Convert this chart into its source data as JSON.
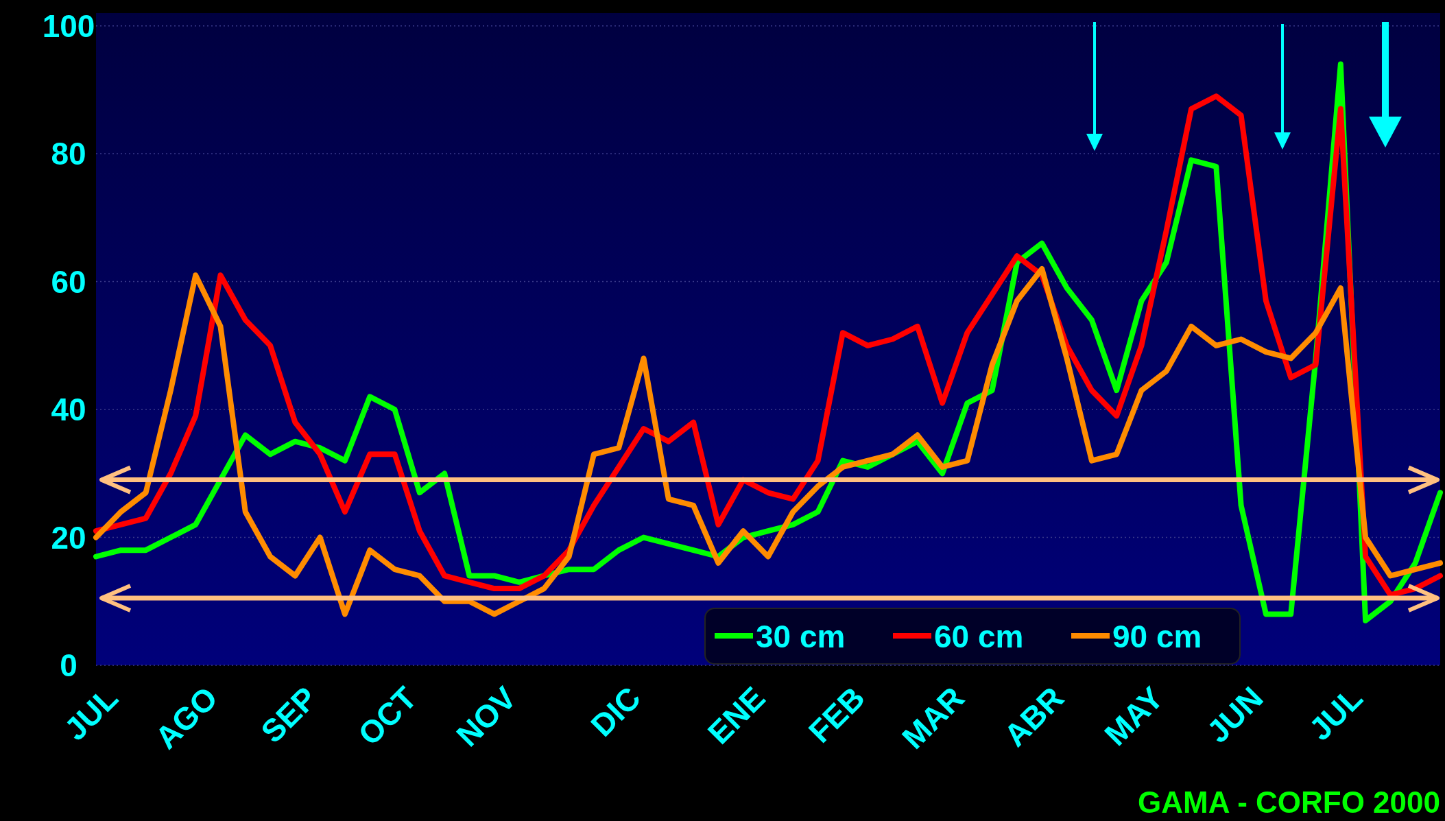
{
  "chart_data": {
    "type": "line",
    "ylim": [
      0,
      102
    ],
    "yticks": [
      0,
      20,
      40,
      60,
      80,
      100
    ],
    "categories": [
      "JUL",
      null,
      null,
      null,
      "AGO",
      null,
      null,
      null,
      "SEP",
      null,
      null,
      null,
      "OCT",
      null,
      null,
      null,
      "NOV",
      null,
      null,
      null,
      null,
      "DIC",
      null,
      null,
      null,
      null,
      "ENE",
      null,
      null,
      null,
      "FEB",
      null,
      null,
      null,
      "MAR",
      null,
      null,
      null,
      "ABR",
      null,
      null,
      null,
      "MAY",
      null,
      null,
      null,
      "JUN",
      null,
      null,
      null,
      "JUL",
      null,
      null,
      null,
      null
    ],
    "series": [
      {
        "name": "30 cm",
        "color": "#00ff00",
        "values": [
          17,
          18,
          18,
          20,
          22,
          29,
          36,
          33,
          35,
          34,
          32,
          42,
          40,
          27,
          30,
          14,
          14,
          13,
          14,
          15,
          15,
          18,
          20,
          19,
          18,
          17,
          20,
          21,
          22,
          24,
          32,
          31,
          33,
          35,
          30,
          41,
          43,
          63,
          66,
          59,
          54,
          43,
          57,
          63,
          79,
          78,
          25,
          8,
          8,
          48,
          94,
          7,
          10,
          16,
          27
        ]
      },
      {
        "name": "60 cm",
        "color": "#ff0000",
        "values": [
          21,
          22,
          23,
          30,
          39,
          61,
          54,
          50,
          38,
          33,
          24,
          33,
          33,
          21,
          14,
          13,
          12,
          12,
          14,
          18,
          25,
          31,
          37,
          35,
          38,
          22,
          29,
          27,
          26,
          32,
          52,
          50,
          51,
          53,
          41,
          52,
          58,
          64,
          61,
          50,
          43,
          39,
          50,
          68,
          87,
          89,
          86,
          57,
          45,
          47,
          87,
          17,
          11,
          12,
          14
        ]
      },
      {
        "name": "90 cm",
        "color": "#ff8c00",
        "values": [
          20,
          24,
          27,
          43,
          61,
          53,
          24,
          17,
          14,
          20,
          8,
          18,
          15,
          14,
          10,
          10,
          8,
          10,
          12,
          17,
          33,
          34,
          48,
          26,
          25,
          16,
          21,
          17,
          24,
          28,
          31,
          32,
          33,
          36,
          31,
          32,
          47,
          57,
          62,
          48,
          32,
          33,
          43,
          46,
          53,
          50,
          51,
          49,
          48,
          52,
          59,
          20,
          14,
          15,
          16
        ]
      }
    ],
    "ref_lines": [
      {
        "axis": "y",
        "value": 29,
        "color": "#ffc080"
      },
      {
        "axis": "y",
        "value": 10.5,
        "color": "#ffc080"
      }
    ],
    "grid": "y",
    "legend": "bottom right",
    "line_style": "solid",
    "marker": "none",
    "annotations": [
      "GAMA - CORFO 2000"
    ]
  }
}
